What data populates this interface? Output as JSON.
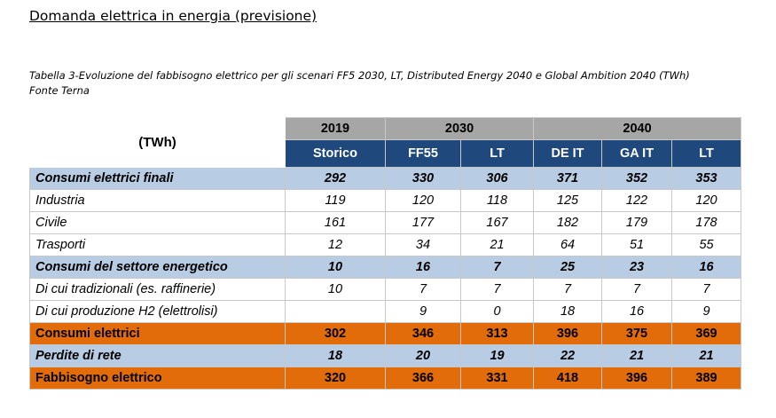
{
  "heading": "Domanda elettrica in energia (previsione)",
  "caption": {
    "line1": "Tabella 3-Evoluzione del fabbisogno elettrico per gli scenari FF5 2030, LT, Distributed Energy 2040 e Global Ambition 2040 (TWh)",
    "line2": "Fonte Terna"
  },
  "table": {
    "unit": "(TWh)",
    "years": [
      "2019",
      "2030",
      "2040"
    ],
    "subheaders": [
      "Storico",
      "FF55",
      "LT",
      "DE IT",
      "GA IT",
      "LT"
    ],
    "rows": [
      {
        "style": "blue",
        "label": "Consumi elettrici finali",
        "values": [
          "292",
          "330",
          "306",
          "371",
          "352",
          "353"
        ]
      },
      {
        "style": "white",
        "label": "Industria",
        "values": [
          "119",
          "120",
          "118",
          "125",
          "122",
          "120"
        ]
      },
      {
        "style": "white",
        "label": "Civile",
        "values": [
          "161",
          "177",
          "167",
          "182",
          "179",
          "178"
        ]
      },
      {
        "style": "white",
        "label": "Trasporti",
        "values": [
          "12",
          "34",
          "21",
          "64",
          "51",
          "55"
        ]
      },
      {
        "style": "blue",
        "label": "Consumi del settore energetico",
        "values": [
          "10",
          "16",
          "7",
          "25",
          "23",
          "16"
        ]
      },
      {
        "style": "white",
        "label": "Di cui tradizionali (es. raffinerie)",
        "values": [
          "10",
          "7",
          "7",
          "7",
          "7",
          "7"
        ]
      },
      {
        "style": "white",
        "label": "Di cui produzione H2 (elettrolisi)",
        "values": [
          "",
          "9",
          "0",
          "18",
          "16",
          "9"
        ]
      },
      {
        "style": "orange",
        "label": "Consumi elettrici",
        "values": [
          "302",
          "346",
          "313",
          "396",
          "375",
          "369"
        ]
      },
      {
        "style": "blue",
        "label": "Perdite di rete",
        "values": [
          "18",
          "20",
          "19",
          "22",
          "21",
          "21"
        ]
      },
      {
        "style": "orange",
        "label": "Fabbisogno elettrico",
        "values": [
          "320",
          "366",
          "331",
          "418",
          "396",
          "389"
        ]
      }
    ]
  },
  "colors": {
    "year_header": "#a6a6a6",
    "sub_header": "#1f497d",
    "blue_row": "#b8cce4",
    "orange_row": "#e26b0a"
  }
}
